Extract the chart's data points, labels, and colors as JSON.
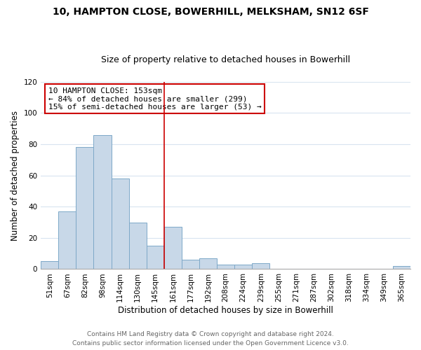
{
  "title1": "10, HAMPTON CLOSE, BOWERHILL, MELKSHAM, SN12 6SF",
  "title2": "Size of property relative to detached houses in Bowerhill",
  "xlabel": "Distribution of detached houses by size in Bowerhill",
  "ylabel": "Number of detached properties",
  "bin_labels": [
    "51sqm",
    "67sqm",
    "82sqm",
    "98sqm",
    "114sqm",
    "130sqm",
    "145sqm",
    "161sqm",
    "177sqm",
    "192sqm",
    "208sqm",
    "224sqm",
    "239sqm",
    "255sqm",
    "271sqm",
    "287sqm",
    "302sqm",
    "318sqm",
    "334sqm",
    "349sqm",
    "365sqm"
  ],
  "bar_heights": [
    5,
    37,
    78,
    86,
    58,
    30,
    15,
    27,
    6,
    7,
    3,
    3,
    4,
    0,
    0,
    0,
    0,
    0,
    0,
    0,
    2
  ],
  "bar_color": "#c8d8e8",
  "bar_edge_color": "#7da8c8",
  "vline_x": 6.5,
  "vline_color": "#cc0000",
  "annotation_text": "10 HAMPTON CLOSE: 153sqm\n← 84% of detached houses are smaller (299)\n15% of semi-detached houses are larger (53) →",
  "annotation_box_edge": "#cc0000",
  "ylim": [
    0,
    120
  ],
  "yticks": [
    0,
    20,
    40,
    60,
    80,
    100,
    120
  ],
  "footer1": "Contains HM Land Registry data © Crown copyright and database right 2024.",
  "footer2": "Contains public sector information licensed under the Open Government Licence v3.0.",
  "background_color": "#ffffff",
  "grid_color": "#d8e4f0",
  "title_fontsize": 10,
  "subtitle_fontsize": 9,
  "xlabel_fontsize": 8.5,
  "ylabel_fontsize": 8.5,
  "tick_fontsize": 7.5,
  "annotation_fontsize": 8,
  "footer_fontsize": 6.5
}
